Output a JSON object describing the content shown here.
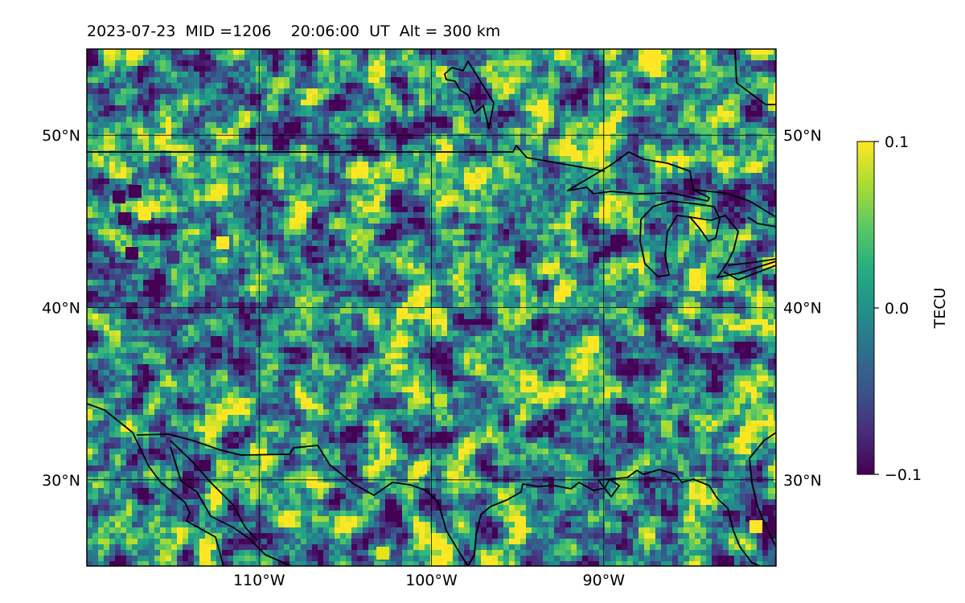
{
  "title": {
    "date": "2023-07-23",
    "mid": "MID =1206",
    "time": "20:06:00",
    "ut": "UT",
    "alt": "Alt = 300 km"
  },
  "map": {
    "lon_range": [
      -120,
      -80
    ],
    "lat_range": [
      25,
      55
    ],
    "colormap": "viridis",
    "gridlines": true,
    "lat_ticks": [
      {
        "value": 30,
        "label": "30°N"
      },
      {
        "value": 40,
        "label": "40°N"
      },
      {
        "value": 50,
        "label": "50°N"
      }
    ],
    "lon_ticks": [
      {
        "value": -110,
        "label": "110°W"
      },
      {
        "value": -100,
        "label": "100°W"
      },
      {
        "value": -90,
        "label": "90°W"
      }
    ]
  },
  "colorbar": {
    "label": "TECU",
    "min": -0.1,
    "max": 0.1,
    "ticks": [
      {
        "value": 0.1,
        "label": "0.1"
      },
      {
        "value": 0.0,
        "label": "0.0"
      },
      {
        "value": -0.1,
        "label": "−0.1"
      }
    ]
  }
}
